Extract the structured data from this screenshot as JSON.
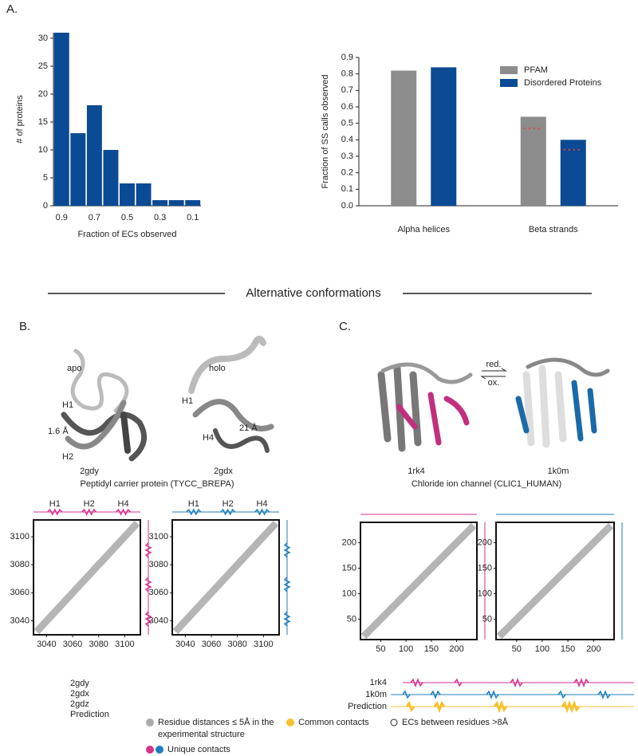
{
  "panel_labels": {
    "a": "A.",
    "b": "B.",
    "c": "C."
  },
  "section_title": "Alternative conformations",
  "chart_data": [
    {
      "type": "bar",
      "categories": [
        "0.9",
        null,
        "0.7",
        null,
        "0.5",
        null,
        "0.3",
        null,
        "0.1"
      ],
      "values": [
        31,
        13,
        18,
        10,
        4,
        4,
        1,
        1,
        1
      ],
      "color": "#0b4a94",
      "ylim": [
        0,
        31
      ],
      "yticks": [
        0,
        5,
        10,
        15,
        20,
        25,
        30
      ],
      "ylabel": "# of proteins",
      "xlabel": "Fraction of ECs observed"
    },
    {
      "type": "grouped-bar",
      "categories": [
        "Alpha helices",
        "Beta strands"
      ],
      "series": [
        {
          "name": "PFAM",
          "color": "#8c8c8c",
          "values": [
            0.82,
            0.54
          ],
          "dotted_values": [
            null,
            0.47
          ]
        },
        {
          "name": "Disordered Proteins",
          "color": "#0b4a94",
          "values": [
            0.84,
            0.4
          ],
          "dotted_values": [
            null,
            0.34
          ]
        }
      ],
      "ylim": [
        0,
        0.9
      ],
      "yticks": [
        {
          "value": 0,
          "label": "0.0"
        },
        0.1,
        0.2,
        0.3,
        0.4,
        0.5,
        0.6,
        0.7,
        0.8,
        0.9
      ],
      "ylabel": "Fraction of SS calls observed",
      "legend": "upper right"
    },
    {
      "type": "contact-map",
      "color": "#d6338f",
      "helices": [
        "H1",
        "H2",
        "H4"
      ],
      "xlim": [
        3030,
        3112
      ],
      "ylim": [
        3030,
        3112
      ],
      "xticks": [
        3040,
        3060,
        3080,
        3100
      ],
      "yticks": [
        3040,
        3060,
        3080,
        3100
      ]
    },
    {
      "type": "contact-map",
      "color": "#1f7fbf",
      "helices": [
        "H1",
        "H2",
        "H4"
      ],
      "xlim": [
        3030,
        3112
      ],
      "ylim": [
        3030,
        3112
      ],
      "xticks": [
        3040,
        3060,
        3080,
        3100
      ],
      "yticks": [
        3040,
        3060,
        3080,
        3100
      ]
    },
    {
      "type": "contact-map",
      "color": "#d6338f",
      "helices": [],
      "xlim": [
        10,
        240
      ],
      "ylim": [
        10,
        240
      ],
      "xticks": [
        50,
        100,
        150,
        200
      ],
      "yticks": [
        50,
        100,
        150,
        200
      ]
    },
    {
      "type": "contact-map",
      "color": "#1f7fbf",
      "helices": [],
      "xlim": [
        10,
        240
      ],
      "ylim": [
        10,
        240
      ],
      "xticks": [
        50,
        100,
        150,
        200
      ],
      "yticks": [
        50,
        100,
        150,
        200
      ]
    }
  ],
  "panel_b": {
    "apo": "apo",
    "holo": "holo",
    "apo_h1": "H1",
    "apo_dist": "1.6 Å",
    "apo_h2": "H2",
    "holo_h1": "H1",
    "holo_h4": "H4",
    "holo_dist": "21 Å",
    "apo_id": "2gdy",
    "holo_id": "2gdx",
    "title": "Peptidyl carrier protein (TYCC_BREPA)",
    "tracks": [
      "2gdy",
      "2gdx",
      "2gdz",
      "Prediction"
    ]
  },
  "panel_c": {
    "red": "red.",
    "ox": "ox.",
    "left_id": "1rk4",
    "right_id": "1k0m",
    "title": "Chloride ion channel (CLIC1_HUMAN)",
    "tracks": [
      "1rk4",
      "1k0m",
      "Prediction"
    ]
  },
  "legend": {
    "gray_1": "Residue distances ≤ 5Å in the",
    "gray_2": "experimental structure",
    "common": "Common contacts",
    "ecs": "ECs between residues >8Å",
    "unique": "Unique contacts"
  }
}
